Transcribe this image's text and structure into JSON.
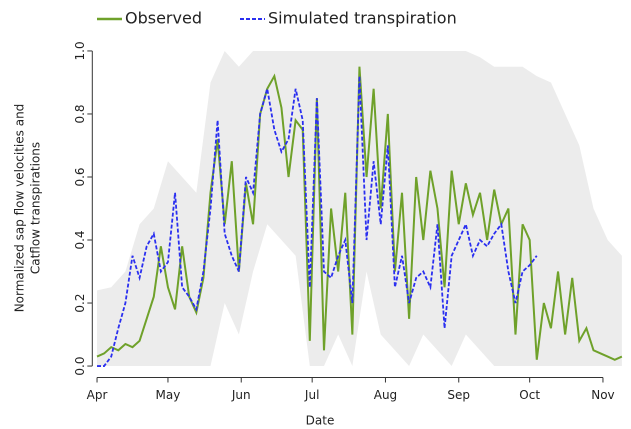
{
  "chart_data": {
    "type": "line",
    "xlabel": "Date",
    "ylabel": [
      "Normalized sap flow velocities and",
      "Catflow transpirations"
    ],
    "xlim": [
      -2,
      224
    ],
    "ylim": [
      -0.03,
      1.03
    ],
    "xticks": [
      {
        "value": 0,
        "label": "Apr"
      },
      {
        "value": 30,
        "label": "May"
      },
      {
        "value": 61,
        "label": "Jun"
      },
      {
        "value": 91,
        "label": "Jul"
      },
      {
        "value": 122,
        "label": "Aug"
      },
      {
        "value": 153,
        "label": "Sep"
      },
      {
        "value": 183,
        "label": "Oct"
      },
      {
        "value": 214,
        "label": "Nov"
      }
    ],
    "yticks": [
      {
        "value": 0,
        "label": "0.0"
      },
      {
        "value": 0.2,
        "label": "0.2"
      },
      {
        "value": 0.4,
        "label": "0.4"
      },
      {
        "value": 0.6,
        "label": "0.6"
      },
      {
        "value": 0.8,
        "label": "0.8"
      },
      {
        "value": 1,
        "label": "1.0"
      }
    ],
    "band": {
      "color": "#ececec",
      "x": [
        0,
        6,
        12,
        18,
        24,
        30,
        36,
        42,
        48,
        54,
        60,
        66,
        72,
        78,
        84,
        90,
        96,
        102,
        108,
        114,
        120,
        126,
        132,
        138,
        144,
        150,
        156,
        162,
        168,
        174,
        180,
        186,
        192,
        198,
        204,
        210,
        216,
        222
      ],
      "upper": [
        0.24,
        0.25,
        0.3,
        0.45,
        0.5,
        0.65,
        0.6,
        0.55,
        0.9,
        1.0,
        0.95,
        1.0,
        1.0,
        1.0,
        1.0,
        1.0,
        1.0,
        1.0,
        1.0,
        1.0,
        1.0,
        1.0,
        1.0,
        1.0,
        1.0,
        1.0,
        1.0,
        0.98,
        0.95,
        0.95,
        0.95,
        0.92,
        0.9,
        0.8,
        0.7,
        0.5,
        0.4,
        0.35
      ],
      "lower": [
        0,
        0,
        0,
        0,
        0,
        0,
        0,
        0,
        0,
        0.2,
        0.1,
        0.3,
        0.45,
        0.4,
        0.35,
        0,
        0,
        0.1,
        0,
        0.3,
        0.1,
        0.05,
        0,
        0.1,
        0.05,
        0,
        0.1,
        0.05,
        0,
        0,
        0,
        0,
        0,
        0,
        0,
        0,
        0,
        0
      ]
    },
    "series": [
      {
        "name": "Observed",
        "color": "#6fa12a",
        "dash": false,
        "x": [
          0,
          3,
          6,
          9,
          12,
          15,
          18,
          21,
          24,
          27,
          30,
          33,
          36,
          39,
          42,
          45,
          48,
          51,
          54,
          57,
          60,
          63,
          66,
          69,
          72,
          75,
          78,
          81,
          84,
          87,
          90,
          93,
          96,
          99,
          102,
          105,
          108,
          111,
          114,
          117,
          120,
          123,
          126,
          129,
          132,
          135,
          138,
          141,
          144,
          147,
          150,
          153,
          156,
          159,
          162,
          165,
          168,
          171,
          174,
          177,
          180,
          183,
          186,
          189,
          192,
          195,
          198,
          201,
          204,
          207,
          210,
          213,
          216,
          219,
          222
        ],
        "values": [
          0.03,
          0.04,
          0.06,
          0.05,
          0.07,
          0.06,
          0.08,
          0.15,
          0.22,
          0.38,
          0.25,
          0.18,
          0.38,
          0.22,
          0.17,
          0.28,
          0.55,
          0.72,
          0.45,
          0.65,
          0.3,
          0.58,
          0.45,
          0.8,
          0.88,
          0.92,
          0.82,
          0.6,
          0.78,
          0.75,
          0.08,
          0.85,
          0.05,
          0.5,
          0.3,
          0.55,
          0.1,
          0.95,
          0.6,
          0.88,
          0.5,
          0.8,
          0.3,
          0.55,
          0.15,
          0.6,
          0.4,
          0.62,
          0.5,
          0.25,
          0.62,
          0.45,
          0.58,
          0.48,
          0.55,
          0.4,
          0.56,
          0.45,
          0.5,
          0.1,
          0.45,
          0.4,
          0.02,
          0.2,
          0.12,
          0.3,
          0.1,
          0.28,
          0.08,
          0.12,
          0.05,
          0.04,
          0.03,
          0.02,
          0.03
        ]
      },
      {
        "name": "Simulated transpiration",
        "color": "#2a2ff0",
        "dash": true,
        "x": [
          0,
          3,
          6,
          9,
          12,
          15,
          18,
          21,
          24,
          27,
          30,
          33,
          36,
          39,
          42,
          45,
          48,
          51,
          54,
          57,
          60,
          63,
          66,
          69,
          72,
          75,
          78,
          81,
          84,
          87,
          90,
          93,
          96,
          99,
          102,
          105,
          108,
          111,
          114,
          117,
          120,
          123,
          126,
          129,
          132,
          135,
          138,
          141,
          144,
          147,
          150,
          153,
          156,
          159,
          162,
          165,
          168,
          171,
          174,
          177,
          180,
          183,
          186
        ],
        "values": [
          0,
          0,
          0.03,
          0.12,
          0.2,
          0.35,
          0.28,
          0.38,
          0.42,
          0.3,
          0.33,
          0.55,
          0.25,
          0.22,
          0.18,
          0.3,
          0.5,
          0.78,
          0.42,
          0.35,
          0.3,
          0.6,
          0.55,
          0.8,
          0.88,
          0.75,
          0.68,
          0.72,
          0.88,
          0.78,
          0.25,
          0.85,
          0.3,
          0.28,
          0.35,
          0.4,
          0.2,
          0.92,
          0.4,
          0.65,
          0.45,
          0.7,
          0.25,
          0.35,
          0.2,
          0.28,
          0.3,
          0.25,
          0.45,
          0.12,
          0.35,
          0.4,
          0.45,
          0.35,
          0.4,
          0.38,
          0.42,
          0.45,
          0.3,
          0.2,
          0.3,
          0.32,
          0.35
        ]
      }
    ]
  }
}
